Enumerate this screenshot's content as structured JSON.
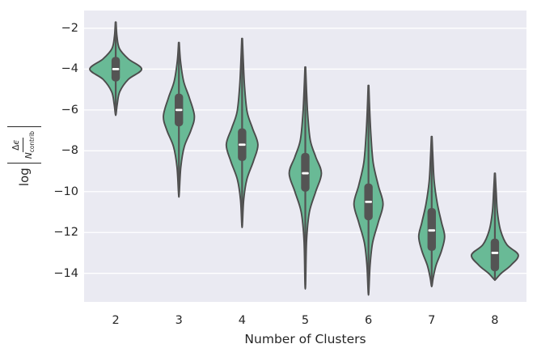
{
  "figure": {
    "background_color": "#ffffff",
    "plot_background_color": "#eaeaf2",
    "grid_color": "#ffffff",
    "text_color": "#262626",
    "violin_fill_color": "#69ba96",
    "violin_edge_color": "#4c4c4c",
    "box_color": "#545454",
    "median_color": "#ffffff"
  },
  "axes": {
    "x_label": "Number of Clusters",
    "x_tick_labels": [
      "2",
      "3",
      "4",
      "5",
      "6",
      "7",
      "8"
    ],
    "y_tick_labels": [
      "−2",
      "−4",
      "−6",
      "−8",
      "−10",
      "−12",
      "−14"
    ],
    "y_tick_values": [
      -2,
      -4,
      -6,
      -8,
      -10,
      -12,
      -14
    ],
    "y_label": {
      "prefix": "log",
      "num_delta": "Δ",
      "num_epsilon": "ϵ",
      "den_base": "N",
      "den_sub": "contrib"
    }
  },
  "chart_data": {
    "type": "violin",
    "title": "",
    "xlabel": "Number of Clusters",
    "ylabel": "log |Δϵ / N_contrib|",
    "categories": [
      2,
      3,
      4,
      5,
      6,
      7,
      8
    ],
    "ylim": [
      -15.4,
      -1.13
    ],
    "grid": true,
    "legend": false,
    "violins": [
      {
        "category": 2,
        "min": -6.2,
        "q1": -4.6,
        "median": -4.0,
        "q3": -3.4,
        "max": -1.7,
        "peak_at": -4.0,
        "max_width_frac": 0.82,
        "profile": [
          [
            -1.7,
            0.01
          ],
          [
            -2.4,
            0.04
          ],
          [
            -3.0,
            0.12
          ],
          [
            -3.5,
            0.4
          ],
          [
            -4.0,
            0.82
          ],
          [
            -4.5,
            0.4
          ],
          [
            -5.1,
            0.13
          ],
          [
            -5.7,
            0.05
          ],
          [
            -6.2,
            0.01
          ]
        ]
      },
      {
        "category": 3,
        "min": -10.1,
        "q1": -6.8,
        "median": -6.0,
        "q3": -5.2,
        "max": -2.7,
        "peak_at": -6.3,
        "max_width_frac": 0.49,
        "profile": [
          [
            -2.7,
            0.01
          ],
          [
            -3.6,
            0.05
          ],
          [
            -4.6,
            0.15
          ],
          [
            -5.4,
            0.33
          ],
          [
            -6.3,
            0.49
          ],
          [
            -7.0,
            0.38
          ],
          [
            -7.8,
            0.17
          ],
          [
            -8.8,
            0.06
          ],
          [
            -10.1,
            0.01
          ]
        ]
      },
      {
        "category": 4,
        "min": -11.6,
        "q1": -8.5,
        "median": -7.7,
        "q3": -6.9,
        "max": -2.5,
        "peak_at": -7.7,
        "max_width_frac": 0.5,
        "profile": [
          [
            -2.5,
            0.01
          ],
          [
            -3.7,
            0.04
          ],
          [
            -4.9,
            0.08
          ],
          [
            -6.1,
            0.16
          ],
          [
            -6.9,
            0.33
          ],
          [
            -7.7,
            0.5
          ],
          [
            -8.5,
            0.36
          ],
          [
            -9.4,
            0.15
          ],
          [
            -10.4,
            0.05
          ],
          [
            -11.6,
            0.01
          ]
        ]
      },
      {
        "category": 5,
        "min": -14.5,
        "q1": -10.0,
        "median": -9.1,
        "q3": -8.1,
        "max": -3.9,
        "peak_at": -9.1,
        "max_width_frac": 0.51,
        "profile": [
          [
            -3.9,
            0.01
          ],
          [
            -5.1,
            0.04
          ],
          [
            -6.3,
            0.08
          ],
          [
            -7.5,
            0.16
          ],
          [
            -8.3,
            0.33
          ],
          [
            -9.1,
            0.51
          ],
          [
            -10.0,
            0.33
          ],
          [
            -11.0,
            0.13
          ],
          [
            -12.4,
            0.04
          ],
          [
            -14.5,
            0.01
          ]
        ]
      },
      {
        "category": 6,
        "min": -14.9,
        "q1": -11.4,
        "median": -10.5,
        "q3": -9.6,
        "max": -4.8,
        "peak_at": -10.6,
        "max_width_frac": 0.46,
        "profile": [
          [
            -4.8,
            0.01
          ],
          [
            -6.1,
            0.04
          ],
          [
            -7.3,
            0.08
          ],
          [
            -8.6,
            0.15
          ],
          [
            -9.7,
            0.31
          ],
          [
            -10.6,
            0.46
          ],
          [
            -11.5,
            0.31
          ],
          [
            -12.5,
            0.13
          ],
          [
            -13.6,
            0.05
          ],
          [
            -14.9,
            0.01
          ]
        ]
      },
      {
        "category": 7,
        "min": -14.6,
        "q1": -12.9,
        "median": -11.9,
        "q3": -10.8,
        "max": -7.3,
        "peak_at": -12.2,
        "max_width_frac": 0.41,
        "profile": [
          [
            -7.3,
            0.01
          ],
          [
            -8.4,
            0.04
          ],
          [
            -9.5,
            0.08
          ],
          [
            -10.6,
            0.18
          ],
          [
            -11.5,
            0.31
          ],
          [
            -12.2,
            0.41
          ],
          [
            -12.9,
            0.31
          ],
          [
            -13.6,
            0.14
          ],
          [
            -14.2,
            0.05
          ],
          [
            -14.6,
            0.01
          ]
        ]
      },
      {
        "category": 8,
        "min": -14.3,
        "q1": -13.9,
        "median": -13.0,
        "q3": -12.3,
        "max": -9.1,
        "peak_at": -13.1,
        "max_width_frac": 0.74,
        "profile": [
          [
            -9.1,
            0.01
          ],
          [
            -10.0,
            0.04
          ],
          [
            -11.0,
            0.08
          ],
          [
            -11.9,
            0.18
          ],
          [
            -12.6,
            0.38
          ],
          [
            -13.1,
            0.74
          ],
          [
            -13.6,
            0.51
          ],
          [
            -14.0,
            0.2
          ],
          [
            -14.3,
            0.02
          ]
        ]
      }
    ]
  }
}
